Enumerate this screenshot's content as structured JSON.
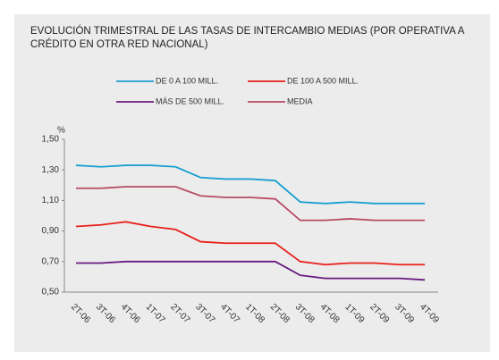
{
  "chart_data": {
    "type": "line",
    "title": "EVOLUCIÓN TRIMESTRAL DE LAS TASAS DE INTERCAMBIO MEDIAS (POR OPERATIVA A CRÉDITO EN OTRA RED NACIONAL)",
    "y_label": "%",
    "categories": [
      "2T-06",
      "3T-06",
      "4T-06",
      "1T-07",
      "2T-07",
      "3T-07",
      "4T-07",
      "1T-08",
      "2T-08",
      "3T-08",
      "4T-08",
      "1T-09",
      "2T-09",
      "3T-09",
      "4T-09"
    ],
    "series": [
      {
        "name": "DE 0 A 100 MILL.",
        "color": "#1a9fd0",
        "values": [
          1.33,
          1.32,
          1.33,
          1.33,
          1.32,
          1.25,
          1.24,
          1.24,
          1.23,
          1.09,
          1.08,
          1.09,
          1.08,
          1.08,
          1.08
        ]
      },
      {
        "name": "DE 100 A 500 MILL.",
        "color": "#e8201a",
        "values": [
          0.93,
          0.94,
          0.96,
          0.93,
          0.91,
          0.83,
          0.82,
          0.82,
          0.82,
          0.7,
          0.68,
          0.69,
          0.69,
          0.68,
          0.68
        ]
      },
      {
        "name": "MÁS DE 500 MILL.",
        "color": "#6a1a80",
        "values": [
          0.69,
          0.69,
          0.7,
          0.7,
          0.7,
          0.7,
          0.7,
          0.7,
          0.7,
          0.61,
          0.59,
          0.59,
          0.59,
          0.59,
          0.58
        ]
      },
      {
        "name": "MEDIA",
        "color": "#b84a64",
        "values": [
          1.18,
          1.18,
          1.19,
          1.19,
          1.19,
          1.13,
          1.12,
          1.12,
          1.11,
          0.97,
          0.97,
          0.98,
          0.97,
          0.97,
          0.97
        ]
      }
    ],
    "ylim": [
      0.5,
      1.5
    ],
    "yticks": [
      {
        "value": 0.5,
        "label": "0,50"
      },
      {
        "value": 0.7,
        "label": "0,70"
      },
      {
        "value": 0.9,
        "label": "0,90"
      },
      {
        "value": 1.1,
        "label": "1,10"
      },
      {
        "value": 1.3,
        "label": "1,30"
      },
      {
        "value": 1.5,
        "label": "1,50"
      }
    ]
  }
}
